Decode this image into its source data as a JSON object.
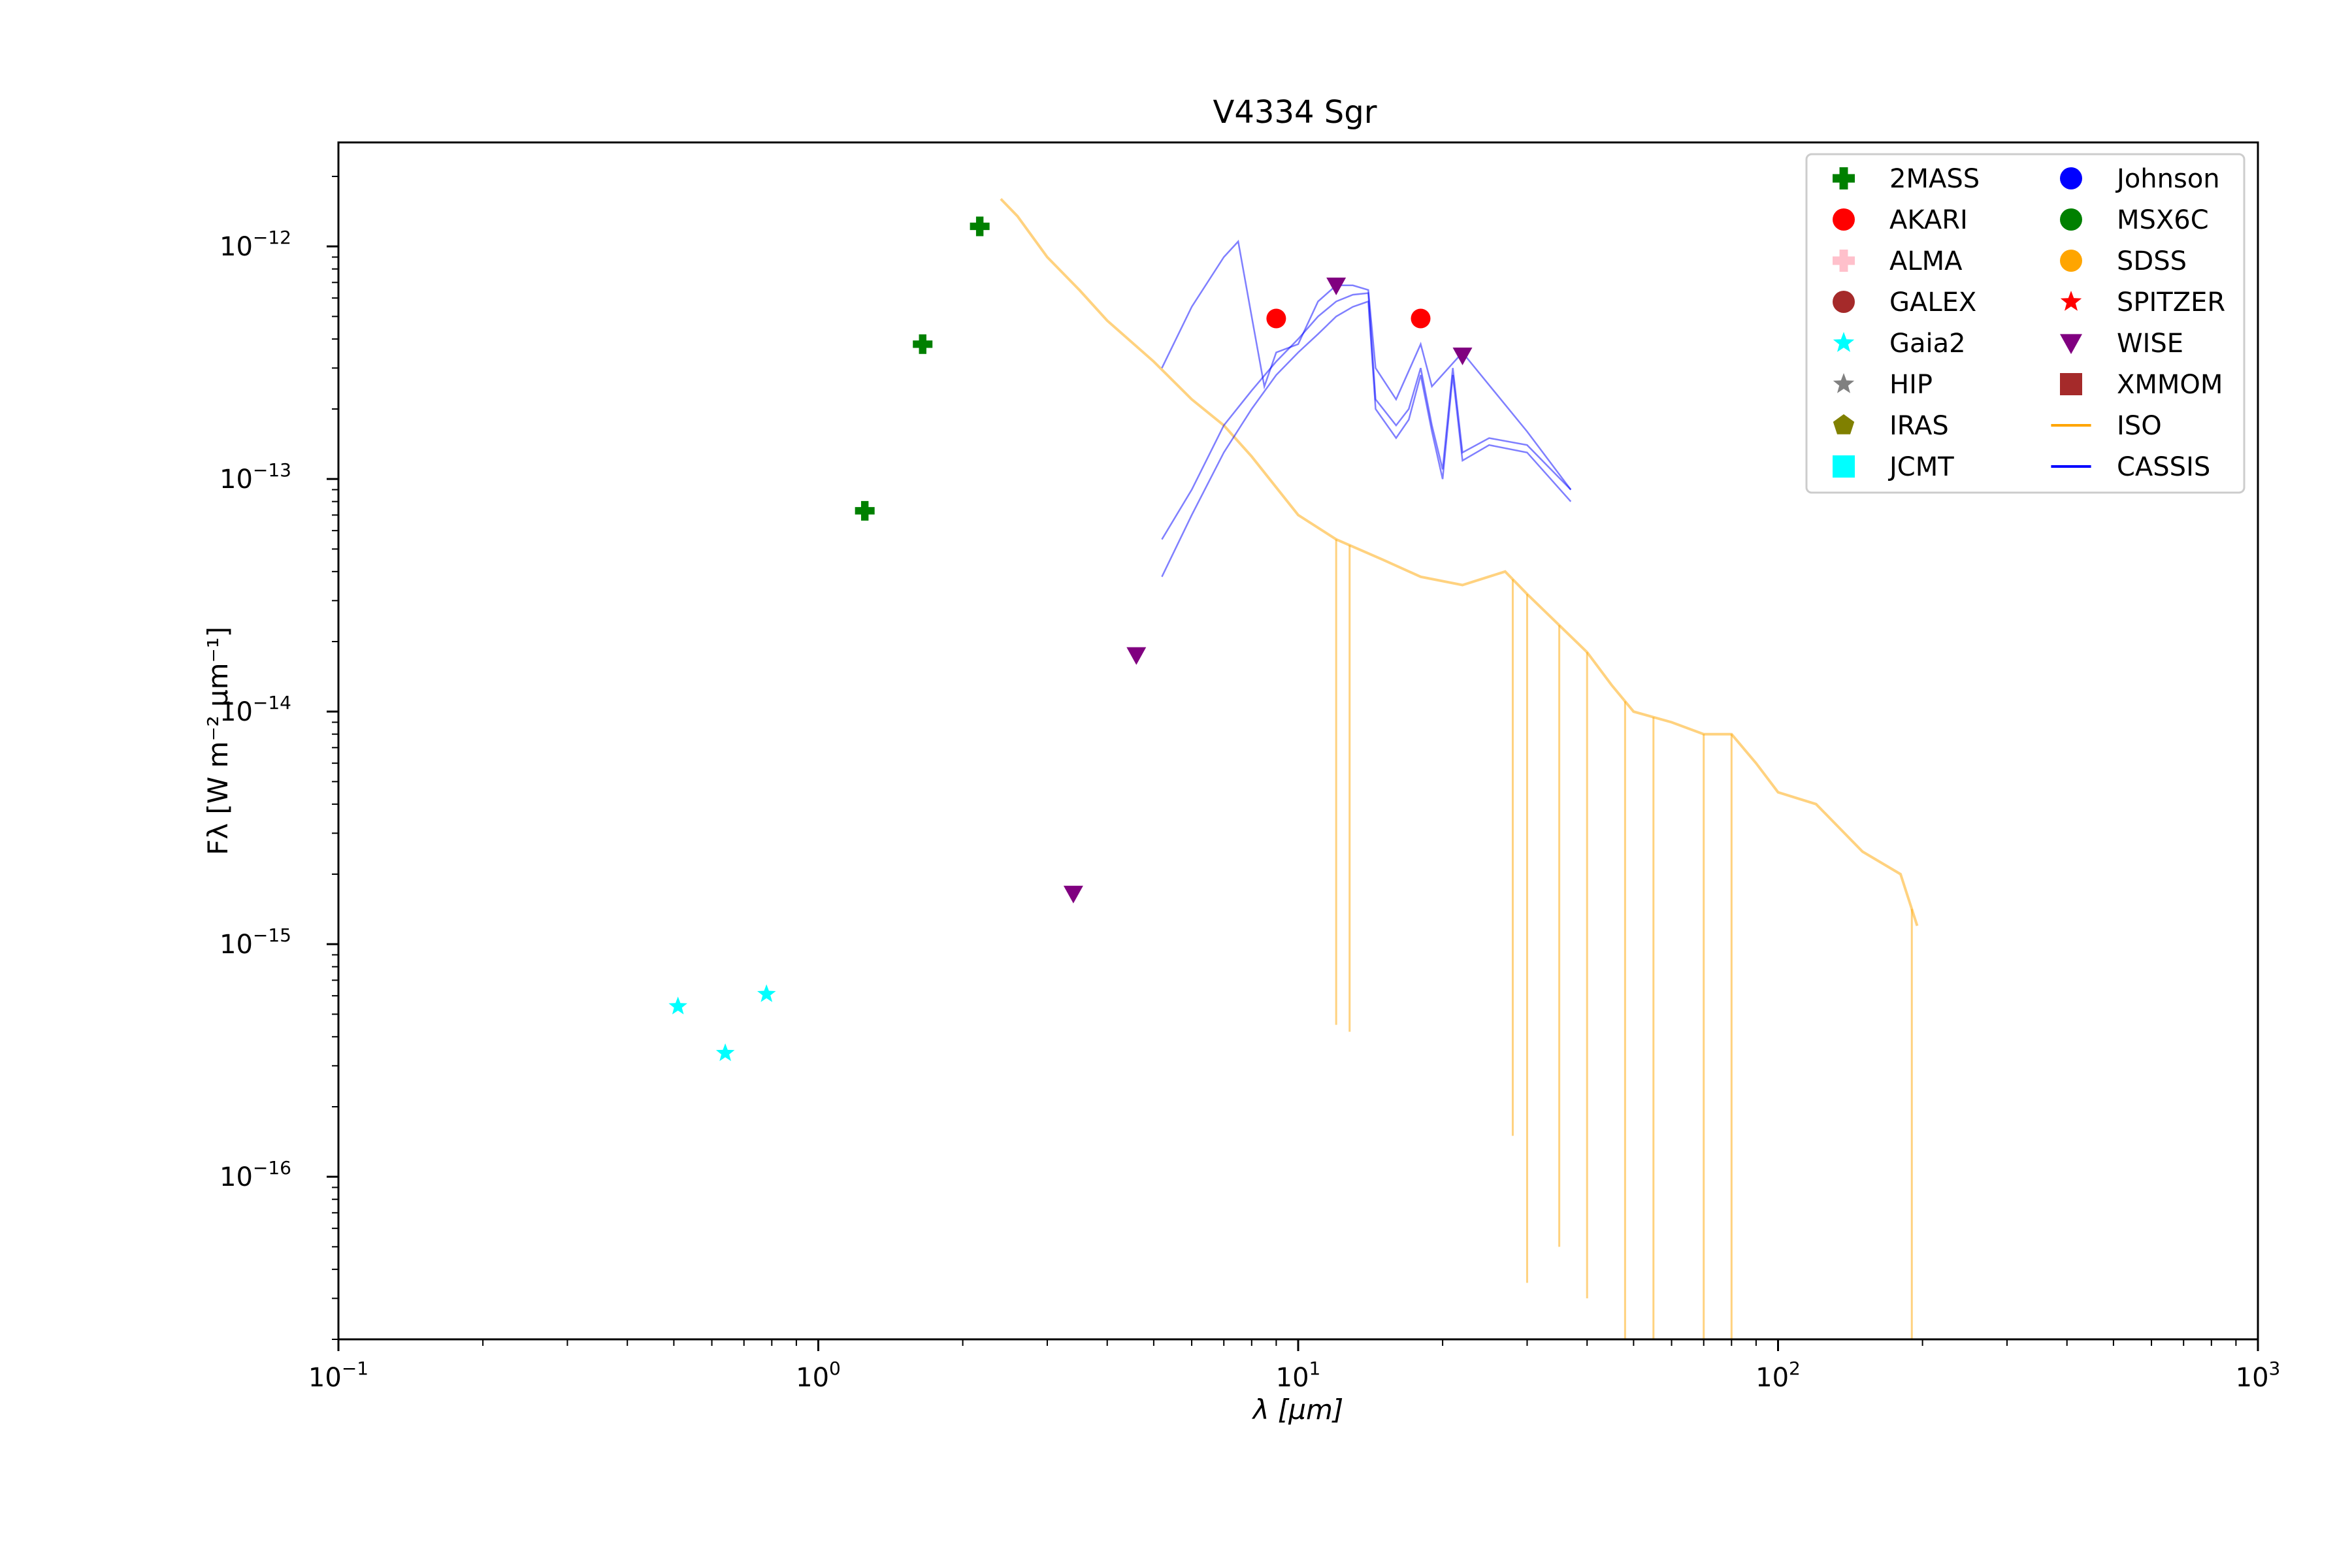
{
  "chart_data": {
    "type": "scatter",
    "title": "V4334 Sgr",
    "xlabel": "λ [μm]",
    "ylabel": "Fλ [W m⁻² μm⁻¹]",
    "xscale": "log",
    "yscale": "log",
    "xlim": [
      0.1,
      1000
    ],
    "ylim": [
      2e-17,
      2.8e-12
    ],
    "x_ticks": [
      {
        "base": "10",
        "exp": "−1",
        "value": 0.1
      },
      {
        "base": "10",
        "exp": "0",
        "value": 1
      },
      {
        "base": "10",
        "exp": "1",
        "value": 10
      },
      {
        "base": "10",
        "exp": "2",
        "value": 100
      },
      {
        "base": "10",
        "exp": "3",
        "value": 1000
      }
    ],
    "y_ticks": [
      {
        "base": "10",
        "exp": "−16",
        "value": 1e-16
      },
      {
        "base": "10",
        "exp": "−15",
        "value": 1e-15
      },
      {
        "base": "10",
        "exp": "−14",
        "value": 1e-14
      },
      {
        "base": "10",
        "exp": "−13",
        "value": 1e-13
      },
      {
        "base": "10",
        "exp": "−12",
        "value": 1e-12
      }
    ],
    "legend_position": "top-right",
    "legend": [
      {
        "label": "2MASS",
        "marker": "plus",
        "color": "#008000"
      },
      {
        "label": "AKARI",
        "marker": "circle",
        "color": "#ff0000"
      },
      {
        "label": "ALMA",
        "marker": "plus",
        "color": "#ffc0cb"
      },
      {
        "label": "GALEX",
        "marker": "circle",
        "color": "#a52a2a"
      },
      {
        "label": "Gaia2",
        "marker": "star",
        "color": "#00ffff"
      },
      {
        "label": "HIP",
        "marker": "star",
        "color": "#808080"
      },
      {
        "label": "IRAS",
        "marker": "pentagon",
        "color": "#808000"
      },
      {
        "label": "JCMT",
        "marker": "square",
        "color": "#00ffff"
      },
      {
        "label": "Johnson",
        "marker": "circle",
        "color": "#0000ff"
      },
      {
        "label": "MSX6C",
        "marker": "circle",
        "color": "#008000"
      },
      {
        "label": "SDSS",
        "marker": "circle",
        "color": "#ffa500"
      },
      {
        "label": "SPITZER",
        "marker": "star",
        "color": "#ff0000"
      },
      {
        "label": "WISE",
        "marker": "triangle-down",
        "color": "#800080"
      },
      {
        "label": "XMMOM",
        "marker": "square",
        "color": "#a52a2a"
      },
      {
        "label": "ISO",
        "marker": "line",
        "color": "#ffa500"
      },
      {
        "label": "CASSIS",
        "marker": "line",
        "color": "#0000ff"
      }
    ],
    "series": [
      {
        "name": "2MASS",
        "marker": "plus",
        "color": "#008000",
        "points": [
          [
            1.25,
            7.3e-14
          ],
          [
            1.65,
            3.8e-13
          ],
          [
            2.17,
            1.22e-12
          ]
        ]
      },
      {
        "name": "AKARI",
        "marker": "circle",
        "color": "#ff0000",
        "points": [
          [
            9.0,
            4.9e-13
          ],
          [
            18.0,
            4.9e-13
          ]
        ]
      },
      {
        "name": "Gaia2",
        "marker": "star",
        "color": "#00ffff",
        "points": [
          [
            0.51,
            5.4e-16
          ],
          [
            0.64,
            3.4e-16
          ],
          [
            0.78,
            6.1e-16
          ]
        ]
      },
      {
        "name": "WISE",
        "marker": "triangle-down",
        "color": "#800080",
        "points": [
          [
            3.4,
            1.65e-15
          ],
          [
            4.6,
            1.75e-14
          ],
          [
            12.0,
            6.8e-13
          ],
          [
            22.0,
            3.4e-13
          ]
        ]
      }
    ],
    "spectra": [
      {
        "name": "ISO",
        "color": "#ffa500",
        "opacity": 0.5,
        "points": [
          [
            2.4,
            1.6e-12
          ],
          [
            2.6,
            1.35e-12
          ],
          [
            3.0,
            9e-13
          ],
          [
            3.5,
            6.5e-13
          ],
          [
            4.0,
            4.8e-13
          ],
          [
            5.0,
            3.2e-13
          ],
          [
            6.0,
            2.2e-13
          ],
          [
            7.0,
            1.7e-13
          ],
          [
            8.0,
            1.25e-13
          ],
          [
            10.0,
            7e-14
          ],
          [
            12.0,
            5.5e-14
          ],
          [
            15.0,
            4.5e-14
          ],
          [
            18.0,
            3.8e-14
          ],
          [
            22.0,
            3.5e-14
          ],
          [
            27.0,
            4e-14
          ],
          [
            30.0,
            3.2e-14
          ],
          [
            40.0,
            1.8e-14
          ],
          [
            45.0,
            1.3e-14
          ],
          [
            50.0,
            1e-14
          ],
          [
            60.0,
            9e-15
          ],
          [
            70.0,
            8e-15
          ],
          [
            80.0,
            8e-15
          ],
          [
            90.0,
            6e-15
          ],
          [
            100.0,
            4.5e-15
          ],
          [
            120.0,
            4e-15
          ],
          [
            150.0,
            2.5e-15
          ],
          [
            180.0,
            2e-15
          ],
          [
            195.0,
            1.2e-15
          ]
        ],
        "dips": [
          [
            12.0,
            4.5e-16
          ],
          [
            12.8,
            4.2e-16
          ],
          [
            28.0,
            1.5e-16
          ],
          [
            30.0,
            3.5e-17
          ],
          [
            35.0,
            5e-17
          ],
          [
            40.0,
            3e-17
          ],
          [
            48.0,
            2e-17
          ],
          [
            55.0,
            2e-17
          ],
          [
            70.0,
            2e-17
          ],
          [
            80.0,
            2e-17
          ],
          [
            190.0,
            2e-17
          ]
        ]
      },
      {
        "name": "CASSIS",
        "color": "#0000ff",
        "opacity": 0.5,
        "curves": [
          [
            [
              5.2,
              3.8e-14
            ],
            [
              6.0,
              7e-14
            ],
            [
              7.0,
              1.3e-13
            ],
            [
              8.0,
              2e-13
            ],
            [
              9.0,
              2.8e-13
            ],
            [
              10.0,
              3.5e-13
            ],
            [
              11.0,
              4.2e-13
            ],
            [
              12.0,
              5e-13
            ],
            [
              13.0,
              5.5e-13
            ],
            [
              14.0,
              5.8e-13
            ],
            [
              14.5,
              2e-13
            ],
            [
              16.0,
              1.5e-13
            ],
            [
              17.0,
              1.8e-13
            ],
            [
              18.0,
              2.8e-13
            ],
            [
              19.0,
              1.6e-13
            ],
            [
              20.0,
              1e-13
            ],
            [
              21.0,
              2.8e-13
            ],
            [
              22.0,
              1.2e-13
            ],
            [
              25.0,
              1.4e-13
            ],
            [
              30.0,
              1.3e-13
            ],
            [
              37.0,
              8e-14
            ]
          ],
          [
            [
              5.2,
              5.5e-14
            ],
            [
              6.0,
              9e-14
            ],
            [
              7.0,
              1.7e-13
            ],
            [
              8.0,
              2.4e-13
            ],
            [
              9.0,
              3.2e-13
            ],
            [
              10.0,
              4e-13
            ],
            [
              11.0,
              5e-13
            ],
            [
              12.0,
              5.8e-13
            ],
            [
              13.0,
              6.2e-13
            ],
            [
              14.0,
              6.3e-13
            ],
            [
              14.5,
              2.2e-13
            ],
            [
              16.0,
              1.7e-13
            ],
            [
              17.0,
              2e-13
            ],
            [
              18.0,
              3e-13
            ],
            [
              19.0,
              1.7e-13
            ],
            [
              20.0,
              1.1e-13
            ],
            [
              21.0,
              3e-13
            ],
            [
              22.0,
              1.3e-13
            ],
            [
              25.0,
              1.5e-13
            ],
            [
              30.0,
              1.4e-13
            ],
            [
              37.0,
              9e-14
            ]
          ],
          [
            [
              5.2,
              3e-13
            ],
            [
              6.0,
              5.5e-13
            ],
            [
              7.0,
              9e-13
            ],
            [
              7.5,
              1.05e-12
            ],
            [
              8.0,
              5e-13
            ],
            [
              8.5,
              2.5e-13
            ],
            [
              9.0,
              3.5e-13
            ],
            [
              10.0,
              3.8e-13
            ],
            [
              11.0,
              5.8e-13
            ],
            [
              12.0,
              6.8e-13
            ],
            [
              13.0,
              6.8e-13
            ],
            [
              14.0,
              6.5e-13
            ],
            [
              14.5,
              3e-13
            ],
            [
              16.0,
              2.2e-13
            ],
            [
              18.0,
              3.8e-13
            ],
            [
              19.0,
              2.5e-13
            ],
            [
              22.0,
              3.5e-13
            ],
            [
              30.0,
              1.6e-13
            ],
            [
              37.0,
              9e-14
            ]
          ]
        ]
      }
    ]
  }
}
